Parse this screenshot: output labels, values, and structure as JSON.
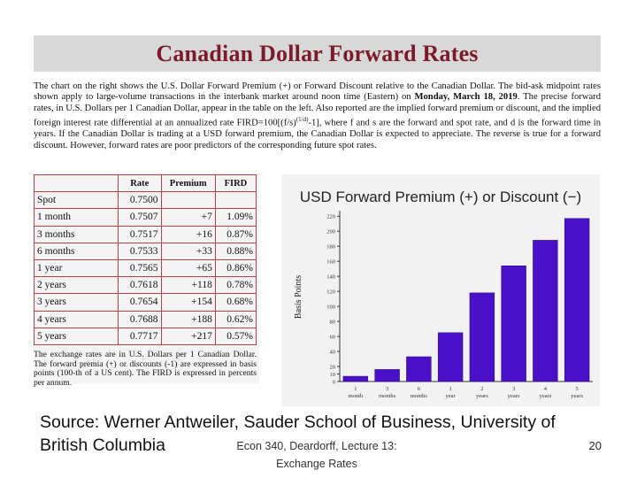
{
  "title": "Canadian Dollar Forward Rates",
  "intro": {
    "part1": "The chart on the right shows the U.S. Dollar Forward Premium (+) or Forward Discount relative to the Canadian Dollar. The bid-ask midpoint rates shown apply to large-volume transactions in the interbank market around noon time (Eastern) on ",
    "date": "Monday, March 18, 2019",
    "part2": ". The precise forward rates, in U.S. Dollars per 1 Canadian Dollar, appear in the table on the left. Also reported are the implied forward premium or discount, and the implied foreign interest rate differential at an annualized rate FIRD=100[(f/s)",
    "exponent": "(1/d)",
    "part3": "-1], where f and s are the forward and spot rate, and d is the forward time in years. If the Canadian Dollar is trading at a USD forward premium, the Canadian Dollar is expected to appreciate. The reverse is true for a forward discount. However, forward rates are poor predictors of the corresponding future spot rates."
  },
  "table": {
    "headers": [
      "",
      "Rate",
      "Premium",
      "FIRD"
    ],
    "rows": [
      {
        "term": "Spot",
        "rate": "0.7500",
        "premium": "",
        "fird": ""
      },
      {
        "term": "1 month",
        "rate": "0.7507",
        "premium": "+7",
        "fird": "1.09%"
      },
      {
        "term": "3 months",
        "rate": "0.7517",
        "premium": "+16",
        "fird": "0.87%"
      },
      {
        "term": "6 months",
        "rate": "0.7533",
        "premium": "+33",
        "fird": "0.88%"
      },
      {
        "term": "1 year",
        "rate": "0.7565",
        "premium": "+65",
        "fird": "0.86%"
      },
      {
        "term": "2 years",
        "rate": "0.7618",
        "premium": "+118",
        "fird": "0.78%"
      },
      {
        "term": "3 years",
        "rate": "0.7654",
        "premium": "+154",
        "fird": "0.68%"
      },
      {
        "term": "4 years",
        "rate": "0.7688",
        "premium": "+188",
        "fird": "0.62%"
      },
      {
        "term": "5 years",
        "rate": "0.7717",
        "premium": "+217",
        "fird": "0.57%"
      }
    ],
    "note": "The exchange rates are in U.S. Dollars per 1 Canadian Dollar. The forward premia (+) or discounts (-1) are expressed in basis points (100-th of a US cent). The FIRD is expressed in percents per annum."
  },
  "chart_data": {
    "type": "bar",
    "title": "USD Forward Premium (+) or Discount (−)",
    "xlabel": "",
    "ylabel": "Basis Points",
    "categories": [
      [
        "1",
        "month"
      ],
      [
        "3",
        "months"
      ],
      [
        "6",
        "months"
      ],
      [
        "1",
        "year"
      ],
      [
        "2",
        "years"
      ],
      [
        "3",
        "years"
      ],
      [
        "4",
        "years"
      ],
      [
        "5",
        "years"
      ]
    ],
    "values": [
      7,
      16,
      33,
      65,
      118,
      154,
      188,
      217
    ],
    "yticks": [
      0,
      10,
      20,
      40,
      60,
      80,
      100,
      120,
      140,
      160,
      180,
      200,
      220
    ],
    "ylim": [
      0,
      225
    ],
    "bar_color": "#4a10c8",
    "grid": false
  },
  "source": "Source:  Werner Antweiler, Sauder School of Business, University of British Columbia",
  "footer": {
    "line1": "Econ 340, Deardorff, Lecture 13:",
    "line2": "Exchange Rates"
  },
  "page_number": "20"
}
